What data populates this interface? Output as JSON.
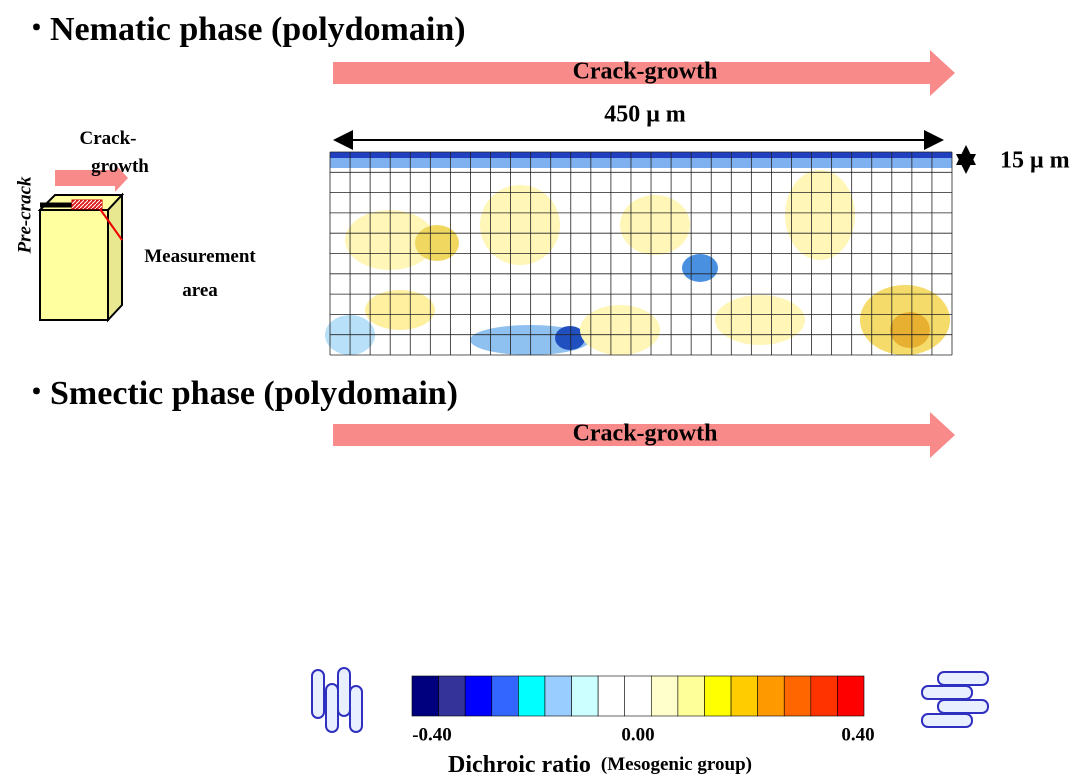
{
  "nematic": {
    "heading": "Nematic phase (polydomain)",
    "arrow_label": "Crack-growth",
    "width_label": "450 μ m",
    "depth_label": "15 μ m"
  },
  "inset": {
    "crack_label": "Crack-\ngrowth",
    "precrack_label": "Pre-crack",
    "area_label": "Measurement\narea"
  },
  "smectic": {
    "heading": "Smectic phase (polydomain)",
    "arrow_label": "Crack-growth"
  },
  "colorbar": {
    "labels": [
      "-0.40",
      "0.00",
      "0.40"
    ],
    "title": "Dichroic ratio",
    "subtitle": "(Mesogenic group)"
  }
}
